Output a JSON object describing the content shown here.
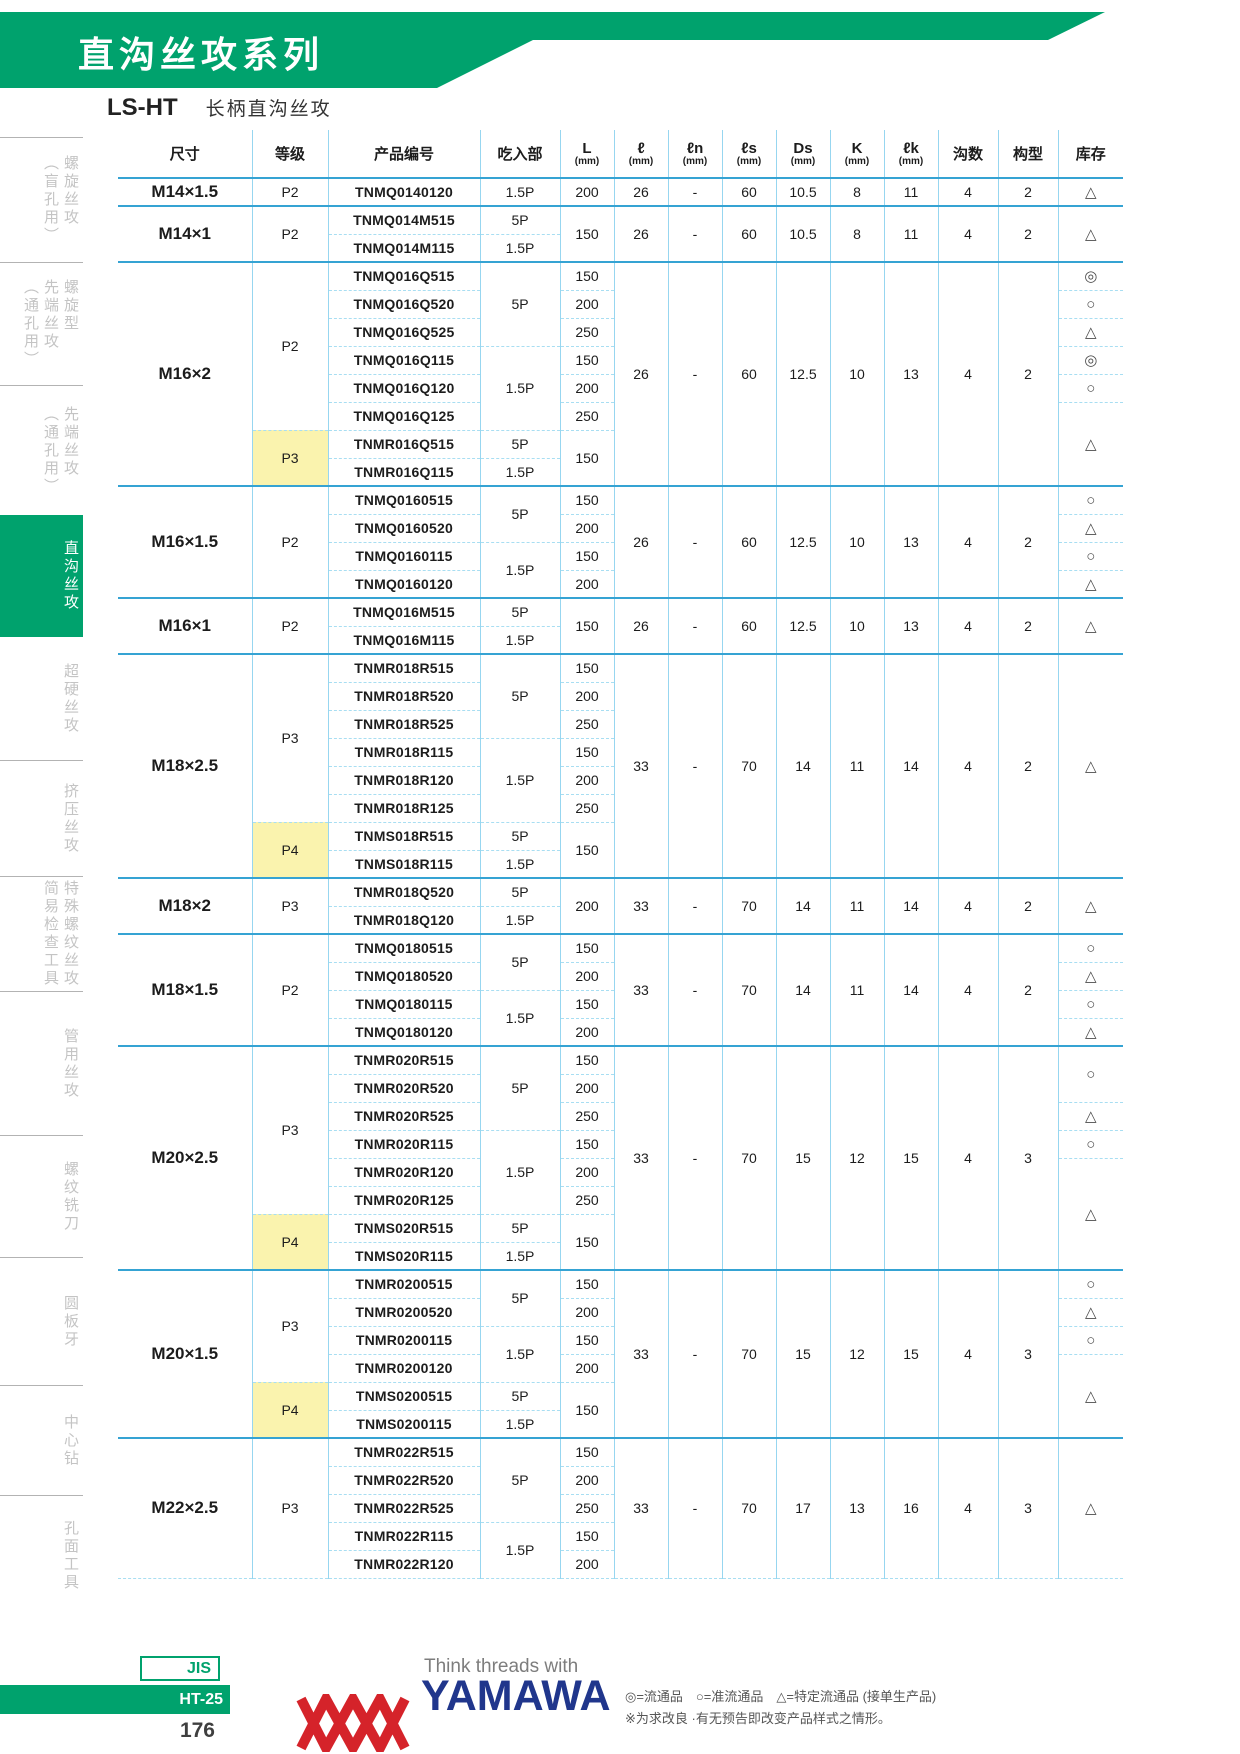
{
  "banner": {
    "title": "直沟丝攻系列"
  },
  "subheader": {
    "code": "LS-HT",
    "name": "长柄直沟丝攻"
  },
  "sidebar": {
    "items": [
      {
        "lines": [
          "螺旋丝攻",
          "（盲孔用）"
        ],
        "active": false
      },
      {
        "lines": [
          "螺旋型",
          "先端丝攻",
          "（通孔用）"
        ],
        "active": false
      },
      {
        "lines": [
          "先端丝攻",
          "（通孔用）"
        ],
        "active": false
      },
      {
        "lines": [
          "直沟丝攻"
        ],
        "active": true
      },
      {
        "lines": [
          "超硬丝攻"
        ],
        "active": false
      },
      {
        "lines": [
          "挤压丝攻"
        ],
        "active": false
      },
      {
        "lines": [
          "特殊螺纹丝攻",
          "简易检查工具"
        ],
        "active": false
      },
      {
        "lines": [
          "管用丝攻"
        ],
        "active": false
      },
      {
        "lines": [
          "螺纹铣刀"
        ],
        "active": false
      },
      {
        "lines": [
          "圆板牙"
        ],
        "active": false
      },
      {
        "lines": [
          "中心钻"
        ],
        "active": false
      },
      {
        "lines": [
          "孔面工具"
        ],
        "active": false
      }
    ]
  },
  "table": {
    "headers": [
      {
        "label": "尺寸",
        "unit": ""
      },
      {
        "label": "等级",
        "unit": ""
      },
      {
        "label": "产品编号",
        "unit": ""
      },
      {
        "label": "吃入部",
        "unit": ""
      },
      {
        "label": "L",
        "unit": "(mm)"
      },
      {
        "label": "ℓ",
        "unit": "(mm)"
      },
      {
        "label": "ℓn",
        "unit": "(mm)"
      },
      {
        "label": "ℓs",
        "unit": "(mm)"
      },
      {
        "label": "Ds",
        "unit": "(mm)"
      },
      {
        "label": "K",
        "unit": "(mm)"
      },
      {
        "label": "ℓk",
        "unit": "(mm)"
      },
      {
        "label": "沟数",
        "unit": ""
      },
      {
        "label": "构型",
        "unit": ""
      },
      {
        "label": "库存",
        "unit": ""
      }
    ],
    "sections": [
      {
        "size": "M14×1.5",
        "rows": 1,
        "grades": [
          {
            "t": "P2",
            "s": 1
          }
        ],
        "products": [
          "TNMQ0140120"
        ],
        "chamfers": [
          {
            "t": "1.5P",
            "s": 1
          }
        ],
        "lengths": [
          {
            "t": "200",
            "s": 1
          }
        ],
        "specs": {
          "l": "26",
          "ln": "-",
          "ls": "60",
          "ds": "10.5",
          "k": "8",
          "lk": "11",
          "flutes": "4",
          "form": "2"
        },
        "stock": [
          {
            "t": "△",
            "s": 1
          }
        ]
      },
      {
        "size": "M14×1",
        "rows": 2,
        "grades": [
          {
            "t": "P2",
            "s": 2
          }
        ],
        "products": [
          "TNMQ014M515",
          "TNMQ014M115"
        ],
        "chamfers": [
          {
            "t": "5P",
            "s": 1
          },
          {
            "t": "1.5P",
            "s": 1
          }
        ],
        "lengths": [
          {
            "t": "150",
            "s": 2
          }
        ],
        "specs": {
          "l": "26",
          "ln": "-",
          "ls": "60",
          "ds": "10.5",
          "k": "8",
          "lk": "11",
          "flutes": "4",
          "form": "2"
        },
        "stock": [
          {
            "t": "△",
            "s": 2
          }
        ]
      },
      {
        "size": "M16×2",
        "rows": 8,
        "grades": [
          {
            "t": "P2",
            "s": 6
          },
          {
            "t": "P3",
            "s": 2,
            "h": true
          }
        ],
        "products": [
          "TNMQ016Q515",
          "TNMQ016Q520",
          "TNMQ016Q525",
          "TNMQ016Q115",
          "TNMQ016Q120",
          "TNMQ016Q125",
          "TNMR016Q515",
          "TNMR016Q115"
        ],
        "chamfers": [
          {
            "t": "5P",
            "s": 3
          },
          {
            "t": "1.5P",
            "s": 3
          },
          {
            "t": "5P",
            "s": 1
          },
          {
            "t": "1.5P",
            "s": 1
          }
        ],
        "lengths": [
          {
            "t": "150",
            "s": 1
          },
          {
            "t": "200",
            "s": 1
          },
          {
            "t": "250",
            "s": 1
          },
          {
            "t": "150",
            "s": 1
          },
          {
            "t": "200",
            "s": 1
          },
          {
            "t": "250",
            "s": 1
          },
          {
            "t": "150",
            "s": 2
          }
        ],
        "specs": {
          "l": "26",
          "ln": "-",
          "ls": "60",
          "ds": "12.5",
          "k": "10",
          "lk": "13",
          "flutes": "4",
          "form": "2"
        },
        "stock": [
          {
            "t": "◎",
            "s": 1
          },
          {
            "t": "○",
            "s": 1
          },
          {
            "t": "△",
            "s": 1
          },
          {
            "t": "◎",
            "s": 1
          },
          {
            "t": "○",
            "s": 1
          },
          {
            "t": "△",
            "s": 3
          }
        ]
      },
      {
        "size": "M16×1.5",
        "rows": 4,
        "grades": [
          {
            "t": "P2",
            "s": 4
          }
        ],
        "products": [
          "TNMQ0160515",
          "TNMQ0160520",
          "TNMQ0160115",
          "TNMQ0160120"
        ],
        "chamfers": [
          {
            "t": "5P",
            "s": 2
          },
          {
            "t": "1.5P",
            "s": 2
          }
        ],
        "lengths": [
          {
            "t": "150",
            "s": 1
          },
          {
            "t": "200",
            "s": 1
          },
          {
            "t": "150",
            "s": 1
          },
          {
            "t": "200",
            "s": 1
          }
        ],
        "specs": {
          "l": "26",
          "ln": "-",
          "ls": "60",
          "ds": "12.5",
          "k": "10",
          "lk": "13",
          "flutes": "4",
          "form": "2"
        },
        "stock": [
          {
            "t": "○",
            "s": 1
          },
          {
            "t": "△",
            "s": 1
          },
          {
            "t": "○",
            "s": 1
          },
          {
            "t": "△",
            "s": 1
          }
        ]
      },
      {
        "size": "M16×1",
        "rows": 2,
        "grades": [
          {
            "t": "P2",
            "s": 2
          }
        ],
        "products": [
          "TNMQ016M515",
          "TNMQ016M115"
        ],
        "chamfers": [
          {
            "t": "5P",
            "s": 1
          },
          {
            "t": "1.5P",
            "s": 1
          }
        ],
        "lengths": [
          {
            "t": "150",
            "s": 2
          }
        ],
        "specs": {
          "l": "26",
          "ln": "-",
          "ls": "60",
          "ds": "12.5",
          "k": "10",
          "lk": "13",
          "flutes": "4",
          "form": "2"
        },
        "stock": [
          {
            "t": "△",
            "s": 2
          }
        ]
      },
      {
        "size": "M18×2.5",
        "rows": 8,
        "grades": [
          {
            "t": "P3",
            "s": 6
          },
          {
            "t": "P4",
            "s": 2,
            "h": true
          }
        ],
        "products": [
          "TNMR018R515",
          "TNMR018R520",
          "TNMR018R525",
          "TNMR018R115",
          "TNMR018R120",
          "TNMR018R125",
          "TNMS018R515",
          "TNMS018R115"
        ],
        "chamfers": [
          {
            "t": "5P",
            "s": 3
          },
          {
            "t": "1.5P",
            "s": 3
          },
          {
            "t": "5P",
            "s": 1
          },
          {
            "t": "1.5P",
            "s": 1
          }
        ],
        "lengths": [
          {
            "t": "150",
            "s": 1
          },
          {
            "t": "200",
            "s": 1
          },
          {
            "t": "250",
            "s": 1
          },
          {
            "t": "150",
            "s": 1
          },
          {
            "t": "200",
            "s": 1
          },
          {
            "t": "250",
            "s": 1
          },
          {
            "t": "150",
            "s": 2
          }
        ],
        "specs": {
          "l": "33",
          "ln": "-",
          "ls": "70",
          "ds": "14",
          "k": "11",
          "lk": "14",
          "flutes": "4",
          "form": "2"
        },
        "stock": [
          {
            "t": "△",
            "s": 8
          }
        ]
      },
      {
        "size": "M18×2",
        "rows": 2,
        "grades": [
          {
            "t": "P3",
            "s": 2
          }
        ],
        "products": [
          "TNMR018Q520",
          "TNMR018Q120"
        ],
        "chamfers": [
          {
            "t": "5P",
            "s": 1
          },
          {
            "t": "1.5P",
            "s": 1
          }
        ],
        "lengths": [
          {
            "t": "200",
            "s": 2
          }
        ],
        "specs": {
          "l": "33",
          "ln": "-",
          "ls": "70",
          "ds": "14",
          "k": "11",
          "lk": "14",
          "flutes": "4",
          "form": "2"
        },
        "stock": [
          {
            "t": "△",
            "s": 2
          }
        ]
      },
      {
        "size": "M18×1.5",
        "rows": 4,
        "grades": [
          {
            "t": "P2",
            "s": 4
          }
        ],
        "products": [
          "TNMQ0180515",
          "TNMQ0180520",
          "TNMQ0180115",
          "TNMQ0180120"
        ],
        "chamfers": [
          {
            "t": "5P",
            "s": 2
          },
          {
            "t": "1.5P",
            "s": 2
          }
        ],
        "lengths": [
          {
            "t": "150",
            "s": 1
          },
          {
            "t": "200",
            "s": 1
          },
          {
            "t": "150",
            "s": 1
          },
          {
            "t": "200",
            "s": 1
          }
        ],
        "specs": {
          "l": "33",
          "ln": "-",
          "ls": "70",
          "ds": "14",
          "k": "11",
          "lk": "14",
          "flutes": "4",
          "form": "2"
        },
        "stock": [
          {
            "t": "○",
            "s": 1
          },
          {
            "t": "△",
            "s": 1
          },
          {
            "t": "○",
            "s": 1
          },
          {
            "t": "△",
            "s": 1
          }
        ]
      },
      {
        "size": "M20×2.5",
        "rows": 8,
        "grades": [
          {
            "t": "P3",
            "s": 6
          },
          {
            "t": "P4",
            "s": 2,
            "h": true
          }
        ],
        "products": [
          "TNMR020R515",
          "TNMR020R520",
          "TNMR020R525",
          "TNMR020R115",
          "TNMR020R120",
          "TNMR020R125",
          "TNMS020R515",
          "TNMS020R115"
        ],
        "chamfers": [
          {
            "t": "5P",
            "s": 3
          },
          {
            "t": "1.5P",
            "s": 3
          },
          {
            "t": "5P",
            "s": 1
          },
          {
            "t": "1.5P",
            "s": 1
          }
        ],
        "lengths": [
          {
            "t": "150",
            "s": 1
          },
          {
            "t": "200",
            "s": 1
          },
          {
            "t": "250",
            "s": 1
          },
          {
            "t": "150",
            "s": 1
          },
          {
            "t": "200",
            "s": 1
          },
          {
            "t": "250",
            "s": 1
          },
          {
            "t": "150",
            "s": 2
          }
        ],
        "specs": {
          "l": "33",
          "ln": "-",
          "ls": "70",
          "ds": "15",
          "k": "12",
          "lk": "15",
          "flutes": "4",
          "form": "3"
        },
        "stock": [
          {
            "t": "○",
            "s": 2
          },
          {
            "t": "△",
            "s": 1
          },
          {
            "t": "○",
            "s": 1
          },
          {
            "t": "△",
            "s": 4
          }
        ]
      },
      {
        "size": "M20×1.5",
        "rows": 6,
        "grades": [
          {
            "t": "P3",
            "s": 4
          },
          {
            "t": "P4",
            "s": 2,
            "h": true
          }
        ],
        "products": [
          "TNMR0200515",
          "TNMR0200520",
          "TNMR0200115",
          "TNMR0200120",
          "TNMS0200515",
          "TNMS0200115"
        ],
        "chamfers": [
          {
            "t": "5P",
            "s": 2
          },
          {
            "t": "1.5P",
            "s": 2
          },
          {
            "t": "5P",
            "s": 1
          },
          {
            "t": "1.5P",
            "s": 1
          }
        ],
        "lengths": [
          {
            "t": "150",
            "s": 1
          },
          {
            "t": "200",
            "s": 1
          },
          {
            "t": "150",
            "s": 1
          },
          {
            "t": "200",
            "s": 1
          },
          {
            "t": "150",
            "s": 2
          }
        ],
        "specs": {
          "l": "33",
          "ln": "-",
          "ls": "70",
          "ds": "15",
          "k": "12",
          "lk": "15",
          "flutes": "4",
          "form": "3"
        },
        "stock": [
          {
            "t": "○",
            "s": 1
          },
          {
            "t": "△",
            "s": 1
          },
          {
            "t": "○",
            "s": 1
          },
          {
            "t": "△",
            "s": 3
          }
        ]
      },
      {
        "size": "M22×2.5",
        "rows": 5,
        "grades": [
          {
            "t": "P3",
            "s": 5
          }
        ],
        "products": [
          "TNMR022R515",
          "TNMR022R520",
          "TNMR022R525",
          "TNMR022R115",
          "TNMR022R120"
        ],
        "chamfers": [
          {
            "t": "5P",
            "s": 3
          },
          {
            "t": "1.5P",
            "s": 2
          }
        ],
        "lengths": [
          {
            "t": "150",
            "s": 1
          },
          {
            "t": "200",
            "s": 1
          },
          {
            "t": "250",
            "s": 1
          },
          {
            "t": "150",
            "s": 1
          },
          {
            "t": "200",
            "s": 1
          }
        ],
        "specs": {
          "l": "33",
          "ln": "-",
          "ls": "70",
          "ds": "17",
          "k": "13",
          "lk": "16",
          "flutes": "4",
          "form": "3"
        },
        "stock": [
          {
            "t": "△",
            "s": 5
          }
        ]
      }
    ]
  },
  "footer": {
    "jis_label": "JIS",
    "ht_label": "HT-25",
    "page_number": "176",
    "logo_tagline": "Think threads with",
    "logo_text": "YAMAWA",
    "legend_line1": "◎=流通品　○=准流通品　△=特定流通品 (接单生产品)",
    "legend_line2": "※为求改良 ·有无预告即改变产品样式之情形。"
  },
  "colors": {
    "green": "#00a26d",
    "line-strong": "#35a3d3",
    "line-light": "#97d6f0",
    "line-dashed": "#a8def2",
    "yellow": "#faf3ae",
    "red": "#d5232a",
    "blue": "#20368c"
  }
}
